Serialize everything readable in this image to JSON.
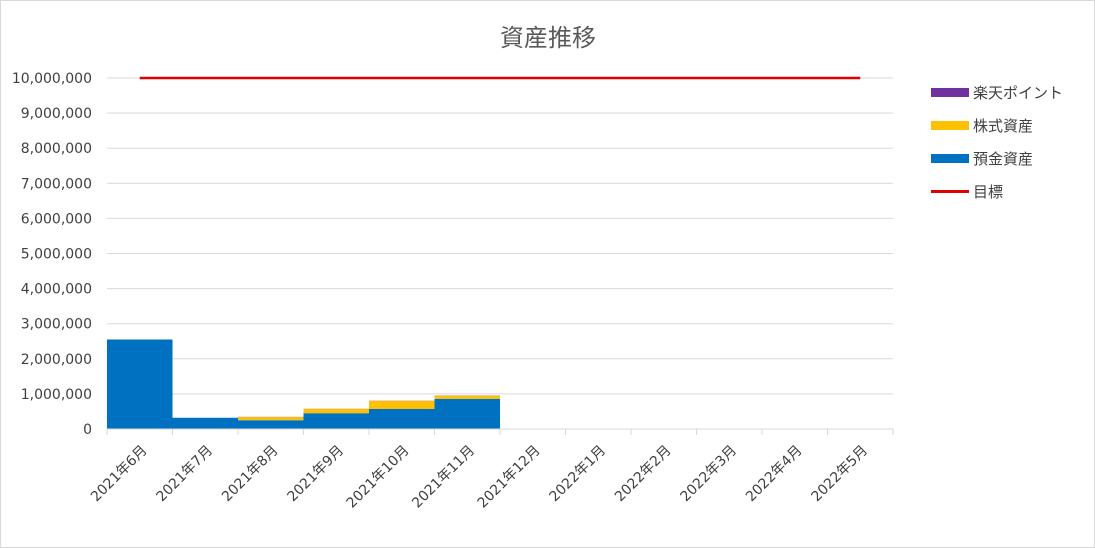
{
  "chart_data": {
    "type": "bar",
    "title": "資産推移",
    "xlabel": "",
    "ylabel": "",
    "ylim": [
      0,
      10000000
    ],
    "yticks": [
      0,
      1000000,
      2000000,
      3000000,
      4000000,
      5000000,
      6000000,
      7000000,
      8000000,
      9000000,
      10000000
    ],
    "ytick_labels": [
      "0",
      "1,000,000",
      "2,000,000",
      "3,000,000",
      "4,000,000",
      "5,000,000",
      "6,000,000",
      "7,000,000",
      "8,000,000",
      "9,000,000",
      "10,000,000"
    ],
    "categories": [
      "2021年6月",
      "2021年7月",
      "2021年8月",
      "2021年9月",
      "2021年10月",
      "2021年11月",
      "2021年12月",
      "2022年1月",
      "2022年2月",
      "2022年3月",
      "2022年4月",
      "2022年5月"
    ],
    "stacked": true,
    "grid": true,
    "legend_position": "right",
    "series": [
      {
        "name": "預金資産",
        "kind": "bar",
        "color": "#0070C0",
        "values": [
          2550000,
          320000,
          250000,
          450000,
          570000,
          860000,
          0,
          0,
          0,
          0,
          0,
          0
        ]
      },
      {
        "name": "株式資産",
        "kind": "bar",
        "color": "#FFC000",
        "values": [
          0,
          0,
          90000,
          120000,
          230000,
          90000,
          0,
          0,
          0,
          0,
          0,
          0
        ]
      },
      {
        "name": "楽天ポイント",
        "kind": "bar",
        "color": "#7030A0",
        "values": [
          0,
          0,
          5000,
          5000,
          5000,
          5000,
          0,
          0,
          0,
          0,
          0,
          0
        ]
      },
      {
        "name": "目標",
        "kind": "line",
        "color": "#E00000",
        "values": [
          10000000,
          10000000,
          10000000,
          10000000,
          10000000,
          10000000,
          10000000,
          10000000,
          10000000,
          10000000,
          10000000,
          10000000
        ]
      }
    ],
    "legend_order": [
      "楽天ポイント",
      "株式資産",
      "預金資産",
      "目標"
    ]
  }
}
